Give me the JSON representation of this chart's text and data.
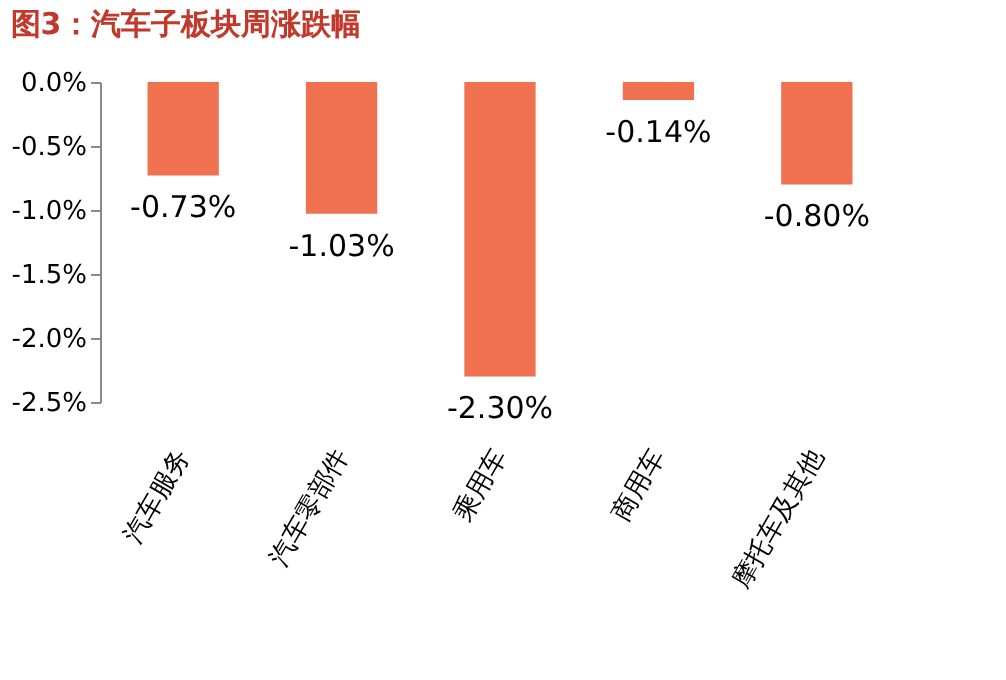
{
  "chart_data": {
    "type": "bar",
    "title": "图3：汽车子板块周涨跌幅",
    "categories": [
      "汽车服务",
      "汽车零部件",
      "乘用车",
      "商用车",
      "摩托车及其他"
    ],
    "values": [
      -0.73,
      -1.03,
      -2.3,
      -0.14,
      -0.8
    ],
    "value_labels": [
      "-0.73%",
      "-1.03%",
      "-2.30%",
      "-0.14%",
      "-0.80%"
    ],
    "color": "#f0714f",
    "ylim": [
      -2.5,
      0
    ],
    "yticks": [
      {
        "value": 0,
        "label": "0.0%"
      },
      {
        "value": -0.5,
        "label": "-0.5%"
      },
      {
        "value": -1.0,
        "label": "-1.0%"
      },
      {
        "value": -1.5,
        "label": "-1.5%"
      },
      {
        "value": -2.0,
        "label": "-2.0%"
      },
      {
        "value": -2.5,
        "label": "-2.5%"
      }
    ],
    "grid": false
  }
}
